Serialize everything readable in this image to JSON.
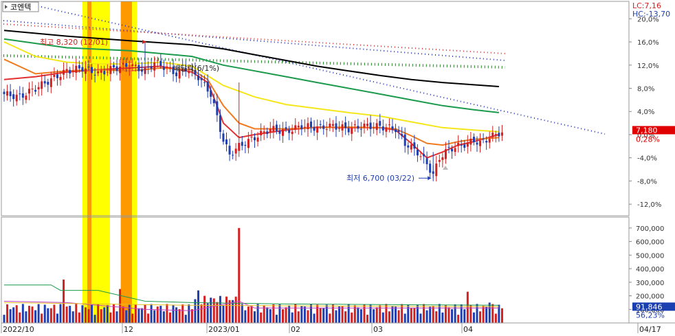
{
  "title": "코엔텍",
  "header": {
    "lc": "LC:7,16",
    "hc": "HC:-13,70"
  },
  "price_axis": {
    "ticks": [
      "20,0%",
      "16,0%",
      "12,0%",
      "8,0%",
      "4,0%",
      "0,0%",
      "-4,0%",
      "-8,0%",
      "-12,0%"
    ],
    "tick_values": [
      20,
      16,
      12,
      8,
      4,
      0,
      -4,
      -8,
      -12
    ],
    "current_price": "7,180",
    "current_change": "0,28%",
    "range_pct": [
      -14,
      23
    ]
  },
  "volume_axis": {
    "ticks": [
      "700,000",
      "600,000",
      "500,000",
      "400,000",
      "300,000",
      "200,000",
      "100,000"
    ],
    "tick_values": [
      700000,
      600000,
      500000,
      400000,
      300000,
      200000,
      100000
    ],
    "current_volume": "91,846",
    "current_pct": "56,23%",
    "range": [
      0,
      780000
    ]
  },
  "x_axis": {
    "labels": [
      "2022/10",
      "12",
      "2023/01",
      "02",
      "03",
      "04",
      "04/17"
    ]
  },
  "annotations": {
    "high": "최고 8,320 (12/01)",
    "low": "최저 6,700 (03/22)",
    "dividend": "배당락(6/1%)"
  },
  "colors": {
    "up": "#d42020",
    "down": "#1f3fb0",
    "ma5": "#e23030",
    "ma20": "#f07a1e",
    "ma60": "#f5e61a",
    "ma120": "#1a9a4a",
    "ma240": "#000000",
    "trend_red": "#e03030",
    "trend_blue": "#2030c0",
    "trend_green": "#1a8a1a",
    "band_yellow": "#ffff00",
    "band_orange": "#ff9900",
    "current_box": "#e00000",
    "volume_current_box": "#1a3fb0"
  },
  "chart_data": {
    "type": "candlestick",
    "title": "코엔텍",
    "x_range": [
      "2022/10",
      "04/17"
    ],
    "series": [
      {
        "name": "price",
        "unit": "percent_change",
        "close_path": [
          [
            0,
            7
          ],
          [
            5,
            6.5
          ],
          [
            10,
            8
          ],
          [
            15,
            9.5
          ],
          [
            20,
            11
          ],
          [
            25,
            11.5
          ],
          [
            30,
            10.5
          ],
          [
            35,
            11.5
          ],
          [
            40,
            12
          ],
          [
            45,
            11
          ],
          [
            48,
            12.5
          ],
          [
            50,
            12
          ],
          [
            52,
            11.5
          ],
          [
            55,
            10.5
          ],
          [
            58,
            11.5
          ],
          [
            62,
            10
          ],
          [
            66,
            7
          ],
          [
            70,
            -1
          ],
          [
            72,
            -3.5
          ],
          [
            75,
            -2
          ],
          [
            80,
            -0.5
          ],
          [
            85,
            1
          ],
          [
            90,
            0.5
          ],
          [
            95,
            1.5
          ],
          [
            100,
            1.2
          ],
          [
            105,
            1.5
          ],
          [
            110,
            1
          ],
          [
            115,
            1.5
          ],
          [
            120,
            1.4
          ],
          [
            125,
            1
          ],
          [
            128,
            -1.5
          ],
          [
            132,
            -3
          ],
          [
            135,
            -5
          ],
          [
            137,
            -7
          ],
          [
            139,
            -4
          ],
          [
            142,
            -2.5
          ],
          [
            145,
            -2
          ],
          [
            148,
            -1.5
          ],
          [
            150,
            -1
          ],
          [
            152,
            -1.5
          ],
          [
            155,
            -0.5
          ],
          [
            158,
            0.3
          ]
        ]
      },
      {
        "name": "volume",
        "unit": "shares"
      }
    ],
    "high_point": {
      "label": "최고 8,320 (12/01)",
      "x": 45,
      "y": 16
    },
    "low_point": {
      "label": "최저 6,700 (03/22)",
      "x": 137,
      "y": -7.5
    },
    "moving_averages": [
      {
        "name": "ma5",
        "path": [
          [
            0,
            9.5
          ],
          [
            10,
            10
          ],
          [
            20,
            10.8
          ],
          [
            30,
            11.2
          ],
          [
            40,
            11.5
          ],
          [
            50,
            11.8
          ],
          [
            60,
            10.8
          ],
          [
            65,
            9
          ],
          [
            68,
            5
          ],
          [
            70,
            2
          ],
          [
            75,
            -0.5
          ],
          [
            80,
            0
          ],
          [
            90,
            0.8
          ],
          [
            100,
            1.3
          ],
          [
            110,
            1.2
          ],
          [
            120,
            1.2
          ],
          [
            125,
            0.8
          ],
          [
            130,
            -1.5
          ],
          [
            135,
            -4
          ],
          [
            140,
            -3
          ],
          [
            145,
            -1.8
          ],
          [
            150,
            -1.2
          ],
          [
            158,
            0
          ]
        ]
      },
      {
        "name": "ma20",
        "path": [
          [
            0,
            13
          ],
          [
            10,
            10.5
          ],
          [
            20,
            11
          ],
          [
            30,
            11.2
          ],
          [
            40,
            11
          ],
          [
            50,
            11.5
          ],
          [
            60,
            11.2
          ],
          [
            65,
            9.5
          ],
          [
            70,
            5
          ],
          [
            75,
            2
          ],
          [
            80,
            1
          ],
          [
            90,
            1
          ],
          [
            100,
            1.2
          ],
          [
            110,
            1.3
          ],
          [
            120,
            1.2
          ],
          [
            125,
            1
          ],
          [
            130,
            -0.2
          ],
          [
            135,
            -1.5
          ],
          [
            140,
            -1.8
          ],
          [
            145,
            -1.2
          ],
          [
            150,
            -0.8
          ],
          [
            158,
            -0.5
          ]
        ]
      },
      {
        "name": "ma60",
        "path": [
          [
            0,
            16
          ],
          [
            10,
            13.5
          ],
          [
            20,
            12.5
          ],
          [
            30,
            12.2
          ],
          [
            40,
            12.2
          ],
          [
            50,
            12.5
          ],
          [
            60,
            11.8
          ],
          [
            70,
            8.5
          ],
          [
            80,
            6.5
          ],
          [
            90,
            5.2
          ],
          [
            100,
            4.5
          ],
          [
            110,
            3.8
          ],
          [
            120,
            3.2
          ],
          [
            130,
            2.2
          ],
          [
            140,
            1.2
          ],
          [
            150,
            0.8
          ],
          [
            158,
            0.5
          ]
        ]
      },
      {
        "name": "ma120",
        "path": [
          [
            0,
            16.5
          ],
          [
            20,
            15
          ],
          [
            40,
            14.5
          ],
          [
            60,
            13.5
          ],
          [
            70,
            12
          ],
          [
            80,
            11
          ],
          [
            90,
            10
          ],
          [
            100,
            9
          ],
          [
            110,
            8
          ],
          [
            120,
            7
          ],
          [
            130,
            6
          ],
          [
            140,
            5
          ],
          [
            150,
            4.3
          ],
          [
            158,
            3.8
          ]
        ]
      },
      {
        "name": "ma240",
        "path": [
          [
            0,
            18
          ],
          [
            20,
            17
          ],
          [
            40,
            16.2
          ],
          [
            60,
            15.5
          ],
          [
            70,
            14.8
          ],
          [
            80,
            13.8
          ],
          [
            90,
            12.8
          ],
          [
            100,
            11.8
          ],
          [
            110,
            11
          ],
          [
            120,
            10.2
          ],
          [
            130,
            9.5
          ],
          [
            140,
            9
          ],
          [
            150,
            8.6
          ],
          [
            158,
            8.3
          ]
        ]
      }
    ],
    "volume_spikes": [
      [
        19,
        320000
      ],
      [
        37,
        250000
      ],
      [
        62,
        240000
      ],
      [
        75,
        700000
      ],
      [
        148,
        230000
      ],
      [
        155,
        150000
      ]
    ]
  }
}
